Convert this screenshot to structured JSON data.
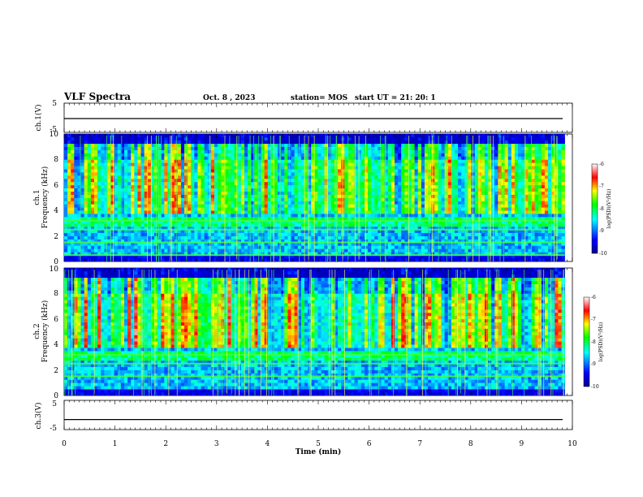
{
  "header": {
    "title": "VLF Spectra",
    "date": "Oct. 8 , 2023",
    "station": "station= MOS",
    "start": "start  UT =   21: 20: 1"
  },
  "colors": {
    "background": "#000000",
    "trace": "#000000"
  },
  "chart_data": [
    {
      "type": "line",
      "panel": "ch1-waveform",
      "ylabel": "ch.1(V)",
      "ylim": [
        -5,
        5
      ],
      "yticks": [
        "5",
        "-5"
      ],
      "x": [
        0,
        10
      ],
      "y": [
        0,
        0
      ]
    },
    {
      "type": "heatmap",
      "panel": "ch1-spectrogram",
      "ylabel_line1": "ch.1",
      "ylabel_line2": "Frequency (kHz)",
      "ylim": [
        0,
        10
      ],
      "yticks": [
        "0",
        "2",
        "4",
        "6",
        "8",
        "10"
      ],
      "xlim": [
        0,
        9.85
      ],
      "colorbar": {
        "label": "log(PSD)(V²/Hz)",
        "range": [
          -10,
          -6
        ],
        "ticks": [
          "-6",
          "-7",
          "-8",
          "-9",
          "-10"
        ]
      },
      "bands_khz": [
        0.5,
        1.5,
        2.5,
        3.2
      ]
    },
    {
      "type": "heatmap",
      "panel": "ch2-spectrogram",
      "ylabel_line1": "ch.2",
      "ylabel_line2": "Frequency (kHz)",
      "ylim": [
        0,
        10
      ],
      "yticks": [
        "0",
        "2",
        "4",
        "6",
        "8",
        "10"
      ],
      "xlim": [
        0,
        9.85
      ],
      "colorbar": {
        "label": "log(PSD)(V²/Hz)",
        "range": [
          -10,
          -6
        ],
        "ticks": [
          "-6",
          "-7",
          "-8",
          "-9",
          "-10"
        ]
      },
      "bands_khz": [
        1.5,
        2.5,
        3.2
      ]
    },
    {
      "type": "line",
      "panel": "ch3-waveform",
      "ylabel": "ch.3(V)",
      "ylim": [
        -5,
        5
      ],
      "yticks": [
        "5",
        "-5"
      ],
      "x": [
        0,
        10
      ],
      "y": [
        -1,
        -1
      ]
    }
  ],
  "xaxis": {
    "label": "Time  (min)",
    "range": [
      0,
      10
    ],
    "ticks": [
      "0",
      "1",
      "2",
      "3",
      "4",
      "5",
      "6",
      "7",
      "8",
      "9",
      "10"
    ]
  }
}
